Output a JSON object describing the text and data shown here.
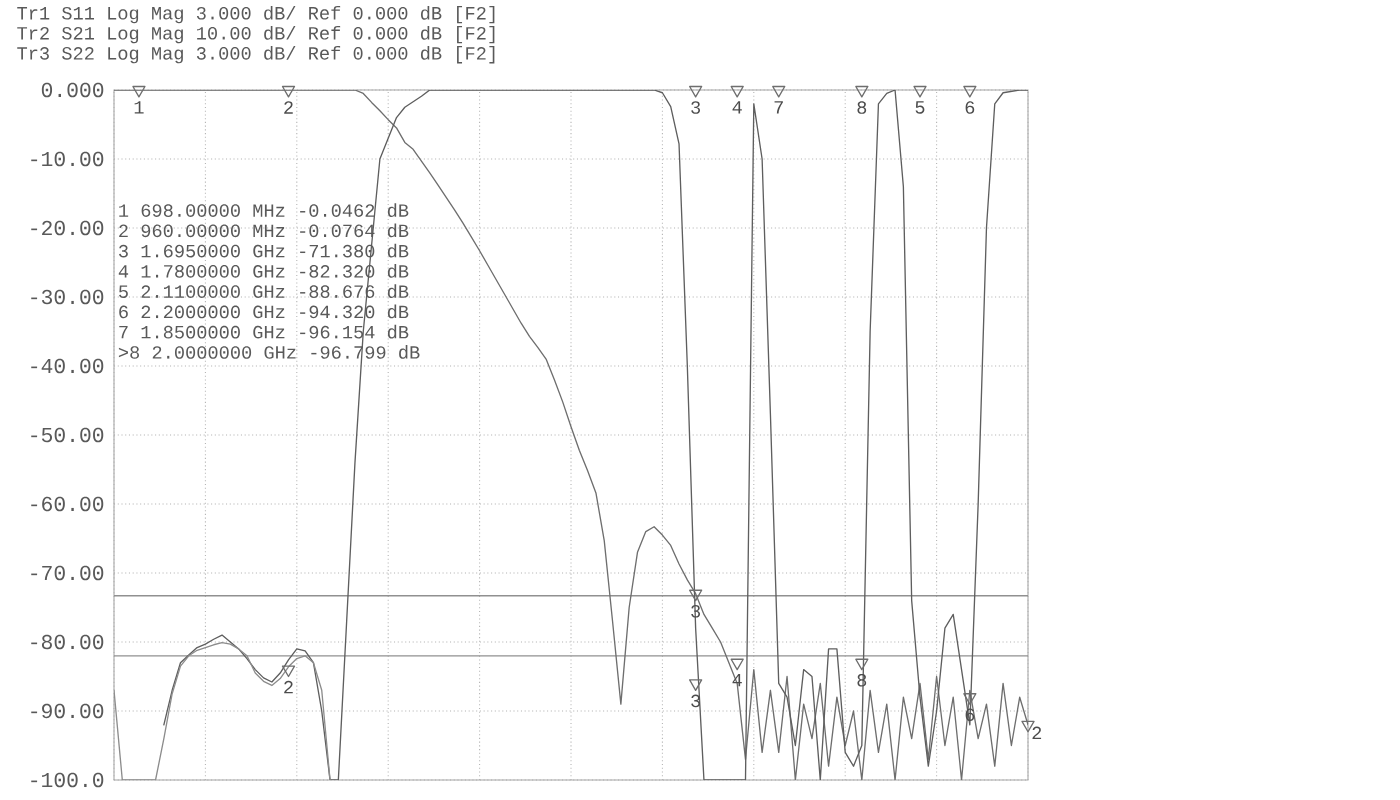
{
  "chart_data": {
    "type": "line",
    "annotations": [
      "Tr1 S11 Log Mag 3.000 dB/ Ref 0.000 dB [F2]",
      "Tr2 S21 Log Mag 10.00 dB/ Ref 0.000 dB [F2]",
      "Tr3 S22 Log Mag 3.000 dB/ Ref 0.000 dB [F2]",
      "1 698.00000 MHz -0.0462 dB",
      "2 960.00000 MHz -0.0764 dB",
      "3 1.6950000 GHz -71.380 dB",
      "4 1.7800000 GHz -82.320 dB",
      "5 2.1100000 GHz -88.676 dB",
      "6 2.2000000 GHz -94.320 dB",
      "7 1.8500000 GHz -96.154 dB",
      ">8 2.0000000 GHz -96.799 dB"
    ],
    "categories": [
      null,
      null,
      null,
      null,
      null,
      null,
      null,
      null,
      null,
      null,
      null,
      null,
      null,
      null,
      null,
      null,
      null,
      null,
      null,
      null,
      null,
      null,
      null,
      null,
      null,
      null,
      null,
      null,
      null,
      null,
      null,
      null,
      null,
      null,
      null,
      null,
      null,
      null,
      null,
      null,
      null,
      null,
      null,
      null,
      null,
      null,
      null,
      null,
      null,
      null,
      null,
      null,
      null,
      null,
      null,
      null,
      null,
      null,
      null,
      null,
      null,
      null,
      null,
      null,
      null,
      null,
      null,
      null,
      null,
      null,
      null,
      null,
      null,
      null,
      null,
      null,
      null,
      null,
      null,
      null,
      null,
      null,
      null,
      null,
      null,
      null,
      null,
      null,
      null,
      null,
      null,
      null,
      null,
      null,
      null,
      null,
      null,
      null,
      null,
      null,
      null,
      null,
      null,
      null,
      null,
      null,
      null,
      null,
      null,
      null,
      null
    ],
    "ylim": [
      -100,
      0
    ],
    "yticks": [
      {
        "value": 0,
        "label": "0.000"
      },
      {
        "value": -10,
        "label": "-10.00"
      },
      {
        "value": -20,
        "label": "-20.00"
      },
      {
        "value": -30,
        "label": "-30.00"
      },
      {
        "value": -40,
        "label": "-40.00"
      },
      {
        "value": -50,
        "label": "-50.00"
      },
      {
        "value": -60,
        "label": "-60.00"
      },
      {
        "value": -70,
        "label": "-70.00"
      },
      {
        "value": -80,
        "label": "-80.00"
      },
      {
        "value": -90,
        "label": "-90.00"
      },
      {
        "value": -100,
        "label": "-100.0"
      }
    ],
    "tick_labels": "y",
    "grid": true,
    "marker": "none",
    "line_style": "solid",
    "ref_lines": [
      {
        "axis": "y",
        "value": -73.3,
        "color": "#909090"
      },
      {
        "axis": "y",
        "value": -82,
        "color": "#909090"
      }
    ],
    "series": [
      {
        "color": "#6e6e6e",
        "values": [
          0,
          0,
          0,
          0,
          0,
          0,
          0,
          0,
          0,
          0,
          0,
          0,
          0,
          0,
          0,
          0,
          0,
          0,
          0,
          0,
          0,
          0,
          0,
          0,
          0,
          0,
          0,
          0,
          0,
          0,
          -0.5,
          -1.8,
          -3,
          -4.3,
          -5.5,
          -7.6,
          -8.6,
          -10.3,
          -12,
          -13.8,
          -15.6,
          -17.4,
          -19.3,
          -21.3,
          -23.3,
          -25.4,
          -27.5,
          -29.6,
          -31.7,
          -33.8,
          -35.7,
          -37.3,
          -39,
          -42,
          -45.2,
          -48.8,
          -52.2,
          -55.2,
          -58.4,
          -65.3,
          -77,
          -89,
          -75,
          -67,
          -64,
          -63.3,
          -64.5,
          -66,
          -68.7,
          -71,
          -73,
          -76,
          -78,
          -80,
          -83,
          -86,
          -97,
          -84,
          -96,
          -87,
          -96,
          -85,
          -100,
          -89,
          -94,
          -86,
          -98,
          -88,
          -95,
          -90,
          -100,
          -87,
          -96,
          -89,
          -100,
          -88,
          -94,
          -86,
          -97,
          -85,
          -95,
          -88,
          -100,
          -87,
          -94,
          -89,
          -98,
          -86,
          -95,
          -88,
          -92
        ]
      },
      {
        "color": "#5e5e5e",
        "values": [
          null,
          null,
          null,
          null,
          null,
          null,
          -92,
          -87,
          -83,
          -81.9,
          -80.8,
          -80.3,
          -79.6,
          -79,
          -80,
          -81,
          -82.4,
          -84,
          -85.2,
          -85.8,
          -84.5,
          -82.6,
          -81,
          -81.3,
          -83,
          -90,
          -100,
          -100,
          -77,
          -54,
          -35,
          -22.5,
          -10,
          -7,
          -4,
          -2.5,
          -1.7,
          -0.9,
          0,
          0,
          0,
          0,
          0,
          0,
          0,
          0,
          0,
          0,
          0,
          0,
          0,
          0,
          0,
          0,
          0,
          0,
          0,
          0,
          0,
          0,
          0,
          0,
          0,
          0,
          0,
          0,
          -0.4,
          -2.4,
          -7.8,
          -40,
          -78,
          -100,
          -100,
          -100,
          -100,
          -100,
          -100,
          -2,
          -10,
          -47,
          -86,
          -88,
          -95,
          -84,
          -85,
          -100,
          -81,
          -81,
          -96,
          -98,
          -95,
          -35,
          -2,
          -0.5,
          0,
          -14,
          -74,
          -88,
          -98,
          -90,
          -78,
          -76,
          -84,
          -92,
          -60,
          -20,
          -2,
          -0.4,
          -0.2,
          0,
          0
        ]
      },
      {
        "color": "#8c8c8c",
        "values": [
          -87,
          -100,
          -100,
          -100,
          -100,
          -100,
          -94,
          -87.5,
          -83.5,
          -82,
          -81.2,
          -80.8,
          -80.4,
          -80.1,
          -80.3,
          -81,
          -82,
          -84.5,
          -85.7,
          -86.3,
          -85.3,
          -83.6,
          -82.4,
          -82,
          -83,
          -87,
          -100,
          null,
          null,
          null,
          null,
          null,
          null,
          null,
          null,
          null,
          null,
          null,
          null,
          null,
          null,
          null,
          null,
          null,
          null,
          null,
          null,
          null,
          null,
          null,
          null,
          null,
          null,
          null,
          null,
          null,
          null,
          null,
          null,
          null,
          null,
          null,
          null,
          null,
          null,
          null,
          null,
          null,
          null,
          null,
          null,
          null,
          null,
          null,
          null,
          null,
          null,
          null,
          null,
          null,
          null,
          null,
          null,
          null,
          null,
          null,
          null,
          null,
          null,
          null,
          null,
          null,
          null,
          null,
          null,
          null,
          null,
          null,
          null,
          null,
          null,
          null,
          null,
          null,
          null,
          null,
          null,
          null,
          null,
          null,
          null
        ]
      },
      {
        "type": "scatter",
        "marker": "triangle",
        "color": "#6e6e6e",
        "name": "1",
        "values": [
          null,
          null,
          null,
          0,
          null,
          null,
          null,
          null,
          null,
          null,
          null,
          null,
          null,
          null,
          null,
          null,
          null,
          null,
          null,
          null,
          null,
          null,
          null,
          null,
          null,
          null,
          null,
          null,
          null,
          null,
          null,
          null,
          null,
          null,
          null,
          null,
          null,
          null,
          null,
          null,
          null,
          null,
          null,
          null,
          null,
          null,
          null,
          null,
          null,
          null,
          null,
          null,
          null,
          null,
          null,
          null,
          null,
          null,
          null,
          null,
          null,
          null,
          null,
          null,
          null,
          null,
          null,
          null,
          null,
          null,
          null,
          null,
          null,
          null,
          null,
          null,
          null,
          null,
          null,
          null,
          null,
          null,
          null,
          null,
          null,
          null,
          null,
          null,
          null,
          null,
          null,
          null,
          null,
          null,
          null,
          null,
          null,
          null,
          null,
          null,
          null,
          null,
          null,
          null,
          null,
          null,
          null,
          null,
          null,
          null,
          null
        ]
      },
      {
        "type": "scatter",
        "marker": "triangle",
        "color": "#6e6e6e",
        "name": "2",
        "values": [
          null,
          null,
          null,
          null,
          null,
          null,
          null,
          null,
          null,
          null,
          null,
          null,
          null,
          null,
          null,
          null,
          null,
          null,
          null,
          null,
          null,
          0,
          null,
          null,
          null,
          null,
          null,
          null,
          null,
          null,
          null,
          null,
          null,
          null,
          null,
          null,
          null,
          null,
          null,
          null,
          null,
          null,
          null,
          null,
          null,
          null,
          null,
          null,
          null,
          null,
          null,
          null,
          null,
          null,
          null,
          null,
          null,
          null,
          null,
          null,
          null,
          null,
          null,
          null,
          null,
          null,
          null,
          null,
          null,
          null,
          null,
          null,
          null,
          null,
          null,
          null,
          null,
          null,
          null,
          null,
          null,
          null,
          null,
          null,
          null,
          null,
          null,
          null,
          null,
          null,
          null,
          null,
          null,
          null,
          null,
          null,
          null,
          null,
          null,
          null,
          null,
          null,
          null,
          null,
          null,
          null,
          null,
          null,
          null,
          null,
          -92
        ]
      },
      {
        "type": "scatter",
        "marker": "triangle",
        "color": "#6e6e6e",
        "name": "2",
        "values": [
          null,
          null,
          null,
          null,
          null,
          null,
          null,
          null,
          null,
          null,
          null,
          null,
          null,
          null,
          null,
          null,
          null,
          null,
          null,
          null,
          null,
          -84,
          null,
          null,
          null,
          null,
          null,
          null,
          null,
          null,
          null,
          null,
          null,
          null,
          null,
          null,
          null,
          null,
          null,
          null,
          null,
          null,
          null,
          null,
          null,
          null,
          null,
          null,
          null,
          null,
          null,
          null,
          null,
          null,
          null,
          null,
          null,
          null,
          null,
          null,
          null,
          null,
          null,
          null,
          null,
          null,
          null,
          null,
          null,
          null,
          null,
          null,
          null,
          null,
          null,
          null,
          null,
          null,
          null,
          null,
          null,
          null,
          null,
          null,
          null,
          null,
          null,
          null,
          null,
          null,
          null,
          null,
          null,
          null,
          null,
          null,
          null,
          null,
          null,
          null,
          null,
          null,
          null,
          null,
          null,
          null,
          null,
          null,
          null,
          null,
          null
        ]
      },
      {
        "type": "scatter",
        "marker": "triangle",
        "color": "#6e6e6e",
        "name": "3",
        "values": [
          null,
          null,
          null,
          null,
          null,
          null,
          null,
          null,
          null,
          null,
          null,
          null,
          null,
          null,
          null,
          null,
          null,
          null,
          null,
          null,
          null,
          null,
          null,
          null,
          null,
          null,
          null,
          null,
          null,
          null,
          null,
          null,
          null,
          null,
          null,
          null,
          null,
          null,
          null,
          null,
          null,
          null,
          null,
          null,
          null,
          null,
          null,
          null,
          null,
          null,
          null,
          null,
          null,
          null,
          null,
          null,
          null,
          null,
          null,
          null,
          null,
          null,
          null,
          null,
          null,
          null,
          null,
          null,
          null,
          null,
          0,
          null,
          null,
          null,
          null,
          null,
          null,
          null,
          null,
          null,
          null,
          null,
          null,
          null,
          null,
          null,
          null,
          null,
          null,
          null,
          null,
          null,
          null,
          null,
          null,
          null,
          null,
          null,
          null,
          null,
          null,
          null,
          null,
          null,
          null,
          null,
          null,
          null,
          null,
          null,
          null
        ]
      },
      {
        "type": "scatter",
        "marker": "triangle",
        "color": "#6e6e6e",
        "name": "3",
        "values": [
          null,
          null,
          null,
          null,
          null,
          null,
          null,
          null,
          null,
          null,
          null,
          null,
          null,
          null,
          null,
          null,
          null,
          null,
          null,
          null,
          null,
          null,
          null,
          null,
          null,
          null,
          null,
          null,
          null,
          null,
          null,
          null,
          null,
          null,
          null,
          null,
          null,
          null,
          null,
          null,
          null,
          null,
          null,
          null,
          null,
          null,
          null,
          null,
          null,
          null,
          null,
          null,
          null,
          null,
          null,
          null,
          null,
          null,
          null,
          null,
          null,
          null,
          null,
          null,
          null,
          null,
          null,
          null,
          null,
          null,
          -73,
          null,
          null,
          null,
          null,
          null,
          null,
          null,
          null,
          null,
          null,
          null,
          null,
          null,
          null,
          null,
          null,
          null,
          null,
          null,
          null,
          null,
          null,
          null,
          null,
          null,
          null,
          null,
          null,
          null,
          null,
          null,
          null,
          null,
          null,
          null,
          null,
          null,
          null,
          null,
          null
        ]
      },
      {
        "type": "scatter",
        "marker": "triangle",
        "color": "#6e6e6e",
        "name": "3",
        "values": [
          null,
          null,
          null,
          null,
          null,
          null,
          null,
          null,
          null,
          null,
          null,
          null,
          null,
          null,
          null,
          null,
          null,
          null,
          null,
          null,
          null,
          null,
          null,
          null,
          null,
          null,
          null,
          null,
          null,
          null,
          null,
          null,
          null,
          null,
          null,
          null,
          null,
          null,
          null,
          null,
          null,
          null,
          null,
          null,
          null,
          null,
          null,
          null,
          null,
          null,
          null,
          null,
          null,
          null,
          null,
          null,
          null,
          null,
          null,
          null,
          null,
          null,
          null,
          null,
          null,
          null,
          null,
          null,
          null,
          null,
          -86,
          null,
          null,
          null,
          null,
          null,
          null,
          null,
          null,
          null,
          null,
          null,
          null,
          null,
          null,
          null,
          null,
          null,
          null,
          null,
          null,
          null,
          null,
          null,
          null,
          null,
          null,
          null,
          null,
          null,
          null,
          null,
          null,
          null,
          null,
          null,
          null,
          null,
          null,
          null,
          null
        ]
      },
      {
        "type": "scatter",
        "marker": "triangle",
        "color": "#6e6e6e",
        "name": "4",
        "values": [
          null,
          null,
          null,
          null,
          null,
          null,
          null,
          null,
          null,
          null,
          null,
          null,
          null,
          null,
          null,
          null,
          null,
          null,
          null,
          null,
          null,
          null,
          null,
          null,
          null,
          null,
          null,
          null,
          null,
          null,
          null,
          null,
          null,
          null,
          null,
          null,
          null,
          null,
          null,
          null,
          null,
          null,
          null,
          null,
          null,
          null,
          null,
          null,
          null,
          null,
          null,
          null,
          null,
          null,
          null,
          null,
          null,
          null,
          null,
          null,
          null,
          null,
          null,
          null,
          null,
          null,
          null,
          null,
          null,
          null,
          null,
          null,
          null,
          null,
          null,
          0,
          null,
          null,
          null,
          null,
          null,
          null,
          null,
          null,
          null,
          null,
          null,
          null,
          null,
          null,
          null,
          null,
          null,
          null,
          null,
          null,
          null,
          null,
          null,
          null,
          null,
          null,
          null,
          null,
          null,
          null,
          null,
          null,
          null,
          null,
          null
        ]
      },
      {
        "type": "scatter",
        "marker": "triangle",
        "color": "#6e6e6e",
        "name": "4",
        "values": [
          null,
          null,
          null,
          null,
          null,
          null,
          null,
          null,
          null,
          null,
          null,
          null,
          null,
          null,
          null,
          null,
          null,
          null,
          null,
          null,
          null,
          null,
          null,
          null,
          null,
          null,
          null,
          null,
          null,
          null,
          null,
          null,
          null,
          null,
          null,
          null,
          null,
          null,
          null,
          null,
          null,
          null,
          null,
          null,
          null,
          null,
          null,
          null,
          null,
          null,
          null,
          null,
          null,
          null,
          null,
          null,
          null,
          null,
          null,
          null,
          null,
          null,
          null,
          null,
          null,
          null,
          null,
          null,
          null,
          null,
          null,
          null,
          null,
          null,
          null,
          -83,
          null,
          null,
          null,
          null,
          null,
          null,
          null,
          null,
          null,
          null,
          null,
          null,
          null,
          null,
          null,
          null,
          null,
          null,
          null,
          null,
          null,
          null,
          null,
          null,
          null,
          null,
          null,
          null,
          null,
          null,
          null,
          null,
          null,
          null,
          null
        ]
      },
      {
        "type": "scatter",
        "marker": "triangle",
        "color": "#6e6e6e",
        "name": "7",
        "values": [
          null,
          null,
          null,
          null,
          null,
          null,
          null,
          null,
          null,
          null,
          null,
          null,
          null,
          null,
          null,
          null,
          null,
          null,
          null,
          null,
          null,
          null,
          null,
          null,
          null,
          null,
          null,
          null,
          null,
          null,
          null,
          null,
          null,
          null,
          null,
          null,
          null,
          null,
          null,
          null,
          null,
          null,
          null,
          null,
          null,
          null,
          null,
          null,
          null,
          null,
          null,
          null,
          null,
          null,
          null,
          null,
          null,
          null,
          null,
          null,
          null,
          null,
          null,
          null,
          null,
          null,
          null,
          null,
          null,
          null,
          null,
          null,
          null,
          null,
          null,
          null,
          null,
          null,
          null,
          null,
          0,
          null,
          null,
          null,
          null,
          null,
          null,
          null,
          null,
          null,
          null,
          null,
          null,
          null,
          null,
          null,
          null,
          null,
          null,
          null,
          null,
          null,
          null,
          null,
          null,
          null,
          null,
          null,
          null,
          null,
          null
        ]
      },
      {
        "type": "scatter",
        "marker": "triangle",
        "color": "#6e6e6e",
        "name": "8",
        "values": [
          null,
          null,
          null,
          null,
          null,
          null,
          null,
          null,
          null,
          null,
          null,
          null,
          null,
          null,
          null,
          null,
          null,
          null,
          null,
          null,
          null,
          null,
          null,
          null,
          null,
          null,
          null,
          null,
          null,
          null,
          null,
          null,
          null,
          null,
          null,
          null,
          null,
          null,
          null,
          null,
          null,
          null,
          null,
          null,
          null,
          null,
          null,
          null,
          null,
          null,
          null,
          null,
          null,
          null,
          null,
          null,
          null,
          null,
          null,
          null,
          null,
          null,
          null,
          null,
          null,
          null,
          null,
          null,
          null,
          null,
          null,
          null,
          null,
          null,
          null,
          null,
          null,
          null,
          null,
          null,
          null,
          null,
          null,
          null,
          null,
          null,
          null,
          null,
          null,
          null,
          0,
          null,
          null,
          null,
          null,
          null,
          null,
          null,
          null,
          null,
          null,
          null,
          null,
          null,
          null,
          null,
          null,
          null,
          null,
          null,
          null
        ]
      },
      {
        "type": "scatter",
        "marker": "triangle",
        "color": "#6e6e6e",
        "name": "8",
        "values": [
          null,
          null,
          null,
          null,
          null,
          null,
          null,
          null,
          null,
          null,
          null,
          null,
          null,
          null,
          null,
          null,
          null,
          null,
          null,
          null,
          null,
          null,
          null,
          null,
          null,
          null,
          null,
          null,
          null,
          null,
          null,
          null,
          null,
          null,
          null,
          null,
          null,
          null,
          null,
          null,
          null,
          null,
          null,
          null,
          null,
          null,
          null,
          null,
          null,
          null,
          null,
          null,
          null,
          null,
          null,
          null,
          null,
          null,
          null,
          null,
          null,
          null,
          null,
          null,
          null,
          null,
          null,
          null,
          null,
          null,
          null,
          null,
          null,
          null,
          null,
          null,
          null,
          null,
          null,
          null,
          null,
          null,
          null,
          null,
          null,
          null,
          null,
          null,
          null,
          null,
          -83,
          null,
          null,
          null,
          null,
          null,
          null,
          null,
          null,
          null,
          null,
          null,
          null,
          null,
          null,
          null,
          null,
          null,
          null,
          null,
          null
        ]
      },
      {
        "type": "scatter",
        "marker": "triangle",
        "color": "#6e6e6e",
        "name": "5",
        "values": [
          null,
          null,
          null,
          null,
          null,
          null,
          null,
          null,
          null,
          null,
          null,
          null,
          null,
          null,
          null,
          null,
          null,
          null,
          null,
          null,
          null,
          null,
          null,
          null,
          null,
          null,
          null,
          null,
          null,
          null,
          null,
          null,
          null,
          null,
          null,
          null,
          null,
          null,
          null,
          null,
          null,
          null,
          null,
          null,
          null,
          null,
          null,
          null,
          null,
          null,
          null,
          null,
          null,
          null,
          null,
          null,
          null,
          null,
          null,
          null,
          null,
          null,
          null,
          null,
          null,
          null,
          null,
          null,
          null,
          null,
          null,
          null,
          null,
          null,
          null,
          null,
          null,
          null,
          null,
          null,
          null,
          null,
          null,
          null,
          null,
          null,
          null,
          null,
          null,
          null,
          null,
          null,
          null,
          null,
          null,
          null,
          null,
          0,
          null,
          null,
          null,
          null,
          null,
          null,
          null,
          null,
          null,
          null,
          null,
          null,
          null
        ]
      },
      {
        "type": "scatter",
        "marker": "triangle",
        "color": "#6e6e6e",
        "name": "6",
        "values": [
          null,
          null,
          null,
          null,
          null,
          null,
          null,
          null,
          null,
          null,
          null,
          null,
          null,
          null,
          null,
          null,
          null,
          null,
          null,
          null,
          null,
          null,
          null,
          null,
          null,
          null,
          null,
          null,
          null,
          null,
          null,
          null,
          null,
          null,
          null,
          null,
          null,
          null,
          null,
          null,
          null,
          null,
          null,
          null,
          null,
          null,
          null,
          null,
          null,
          null,
          null,
          null,
          null,
          null,
          null,
          null,
          null,
          null,
          null,
          null,
          null,
          null,
          null,
          null,
          null,
          null,
          null,
          null,
          null,
          null,
          null,
          null,
          null,
          null,
          null,
          null,
          null,
          null,
          null,
          null,
          null,
          null,
          null,
          null,
          null,
          null,
          null,
          null,
          null,
          null,
          null,
          null,
          null,
          null,
          null,
          null,
          null,
          null,
          null,
          null,
          null,
          null,
          null,
          0,
          null,
          null,
          null,
          null,
          null,
          null,
          null
        ]
      },
      {
        "type": "scatter",
        "marker": "triangle",
        "color": "#6e6e6e",
        "name": "6",
        "values": [
          null,
          null,
          null,
          null,
          null,
          null,
          null,
          null,
          null,
          null,
          null,
          null,
          null,
          null,
          null,
          null,
          null,
          null,
          null,
          null,
          null,
          null,
          null,
          null,
          null,
          null,
          null,
          null,
          null,
          null,
          null,
          null,
          null,
          null,
          null,
          null,
          null,
          null,
          null,
          null,
          null,
          null,
          null,
          null,
          null,
          null,
          null,
          null,
          null,
          null,
          null,
          null,
          null,
          null,
          null,
          null,
          null,
          null,
          null,
          null,
          null,
          null,
          null,
          null,
          null,
          null,
          null,
          null,
          null,
          null,
          null,
          null,
          null,
          null,
          null,
          null,
          null,
          null,
          null,
          null,
          null,
          null,
          null,
          null,
          null,
          null,
          null,
          null,
          null,
          null,
          null,
          null,
          null,
          null,
          null,
          null,
          null,
          null,
          null,
          null,
          null,
          null,
          null,
          -88,
          null,
          null,
          null,
          null,
          null,
          null,
          null
        ]
      }
    ]
  }
}
